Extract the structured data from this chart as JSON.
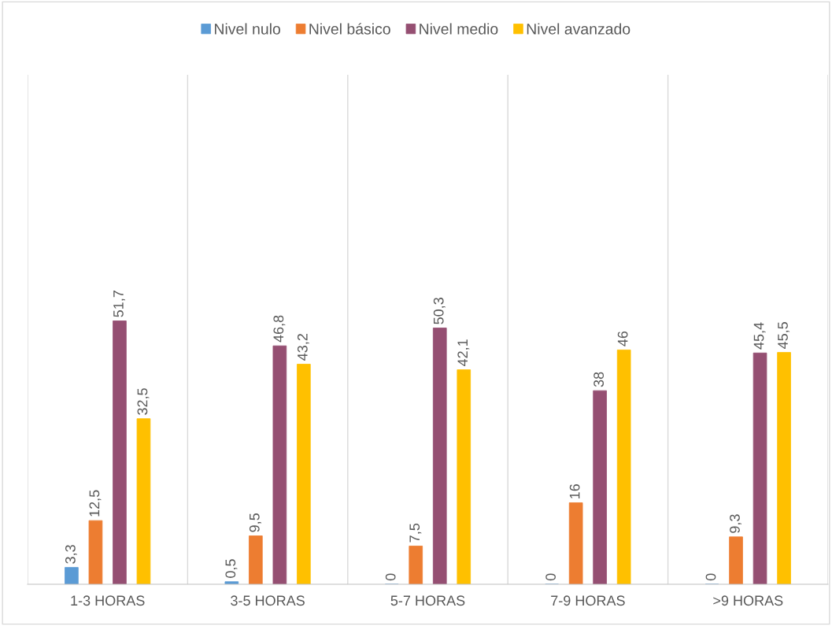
{
  "chart_data": {
    "type": "bar",
    "categories": [
      "1-3 HORAS",
      "3-5 HORAS",
      "5-7 HORAS",
      "7-9 HORAS",
      ">9 HORAS"
    ],
    "series": [
      {
        "name": "Nivel nulo",
        "color": "#5b9bd5",
        "values": [
          3.3,
          0.5,
          0,
          0,
          0
        ],
        "value_labels": [
          "3,3",
          "0,5",
          "0",
          "0",
          "0"
        ]
      },
      {
        "name": "Nivel básico",
        "color": "#ed7d31",
        "values": [
          12.5,
          9.5,
          7.5,
          16,
          9.3
        ],
        "value_labels": [
          "12,5",
          "9,5",
          "7,5",
          "16",
          "9,3"
        ]
      },
      {
        "name": "Nivel medio",
        "color": "#954f72",
        "values": [
          51.7,
          46.8,
          50.3,
          38,
          45.4
        ],
        "value_labels": [
          "51,7",
          "46,8",
          "50,3",
          "38",
          "45,4"
        ]
      },
      {
        "name": "Nivel avanzado",
        "color": "#ffc000",
        "values": [
          32.5,
          43.2,
          42.1,
          46,
          45.5
        ],
        "value_labels": [
          "32,5",
          "43,2",
          "42,1",
          "46",
          "45,5"
        ]
      }
    ],
    "ylim": [
      0,
      100
    ],
    "grid": "x",
    "legend": "top",
    "tick_labels": "x"
  }
}
